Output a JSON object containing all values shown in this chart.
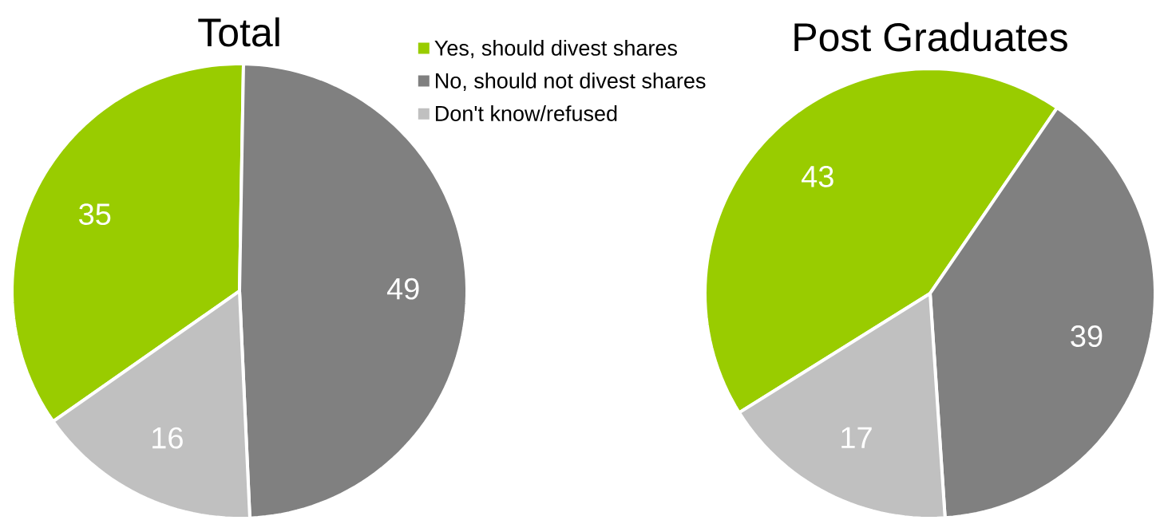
{
  "chart_data": [
    {
      "type": "pie",
      "title": "Total",
      "categories": [
        "Yes, should divest shares",
        "No, should not divest shares",
        "Don't know/refused"
      ],
      "values": [
        35,
        49,
        16
      ],
      "colors": [
        "#99cc00",
        "#808080",
        "#c0c0c0"
      ],
      "data_labels": true,
      "legend": "right"
    },
    {
      "type": "pie",
      "title": "Post Graduates",
      "categories": [
        null,
        null,
        null
      ],
      "values": [
        43,
        39,
        17
      ],
      "colors": [
        "#99cc00",
        "#808080",
        "#c0c0c0"
      ],
      "data_labels": true
    }
  ]
}
